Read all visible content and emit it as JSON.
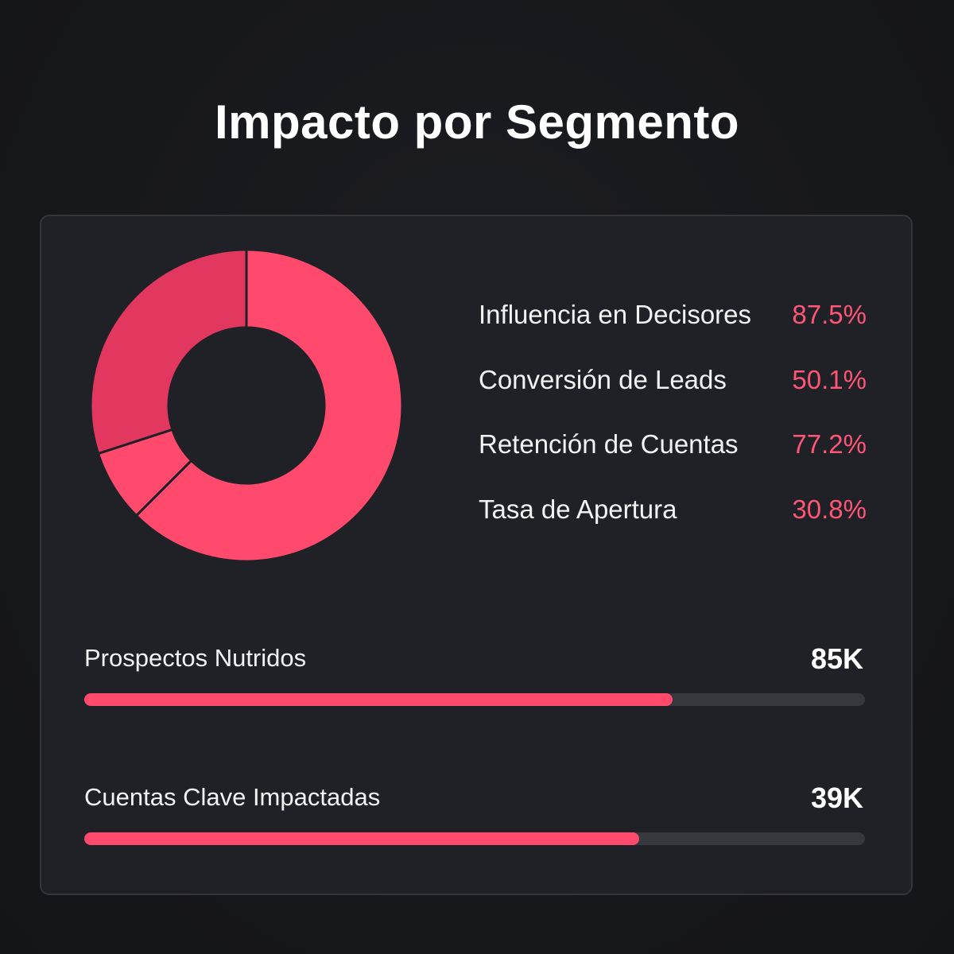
{
  "title": "Impacto por Segmento",
  "colors": {
    "accent": "#ff4a6e",
    "accent_dark": "#e2375f",
    "value_text": "#ff5577",
    "background": "#17181c",
    "card": "#202126",
    "track": "#36383e"
  },
  "metrics": [
    {
      "label": "Influencia en Decisores",
      "value": "87.5%"
    },
    {
      "label": "Conversión de Leads",
      "value": "50.1%"
    },
    {
      "label": "Retención de Cuentas",
      "value": "77.2%"
    },
    {
      "label": "Tasa de Apertura",
      "value": "30.8%"
    }
  ],
  "bars": [
    {
      "label": "Prospectos Nutridos",
      "value": "85K",
      "fill_fraction": 0.754
    },
    {
      "label": "Cuentas Clave Impactadas",
      "value": "39K",
      "fill_fraction": 0.711
    }
  ],
  "chart_data": [
    {
      "type": "pie",
      "variant": "donut",
      "segments": [
        {
          "value_share": 0.625,
          "color": "#ff4a6e"
        },
        {
          "value_share": 0.075,
          "color": "#ff4a6e"
        },
        {
          "value_share": 0.3,
          "color": "#e2375f"
        }
      ]
    },
    {
      "type": "table",
      "rows": [
        [
          "Influencia en Decisores",
          "87.5%"
        ],
        [
          "Conversión de Leads",
          "50.1%"
        ],
        [
          "Retención de Cuentas",
          "77.2%"
        ],
        [
          "Tasa de Apertura",
          "30.8%"
        ]
      ]
    },
    {
      "type": "bar",
      "orientation": "horizontal",
      "categories": [
        "Prospectos Nutridos",
        "Cuentas Clave Impactadas"
      ],
      "values": [
        85,
        39
      ],
      "value_labels": [
        "85K",
        "39K"
      ],
      "fill_fractions": [
        0.754,
        0.711
      ]
    }
  ]
}
